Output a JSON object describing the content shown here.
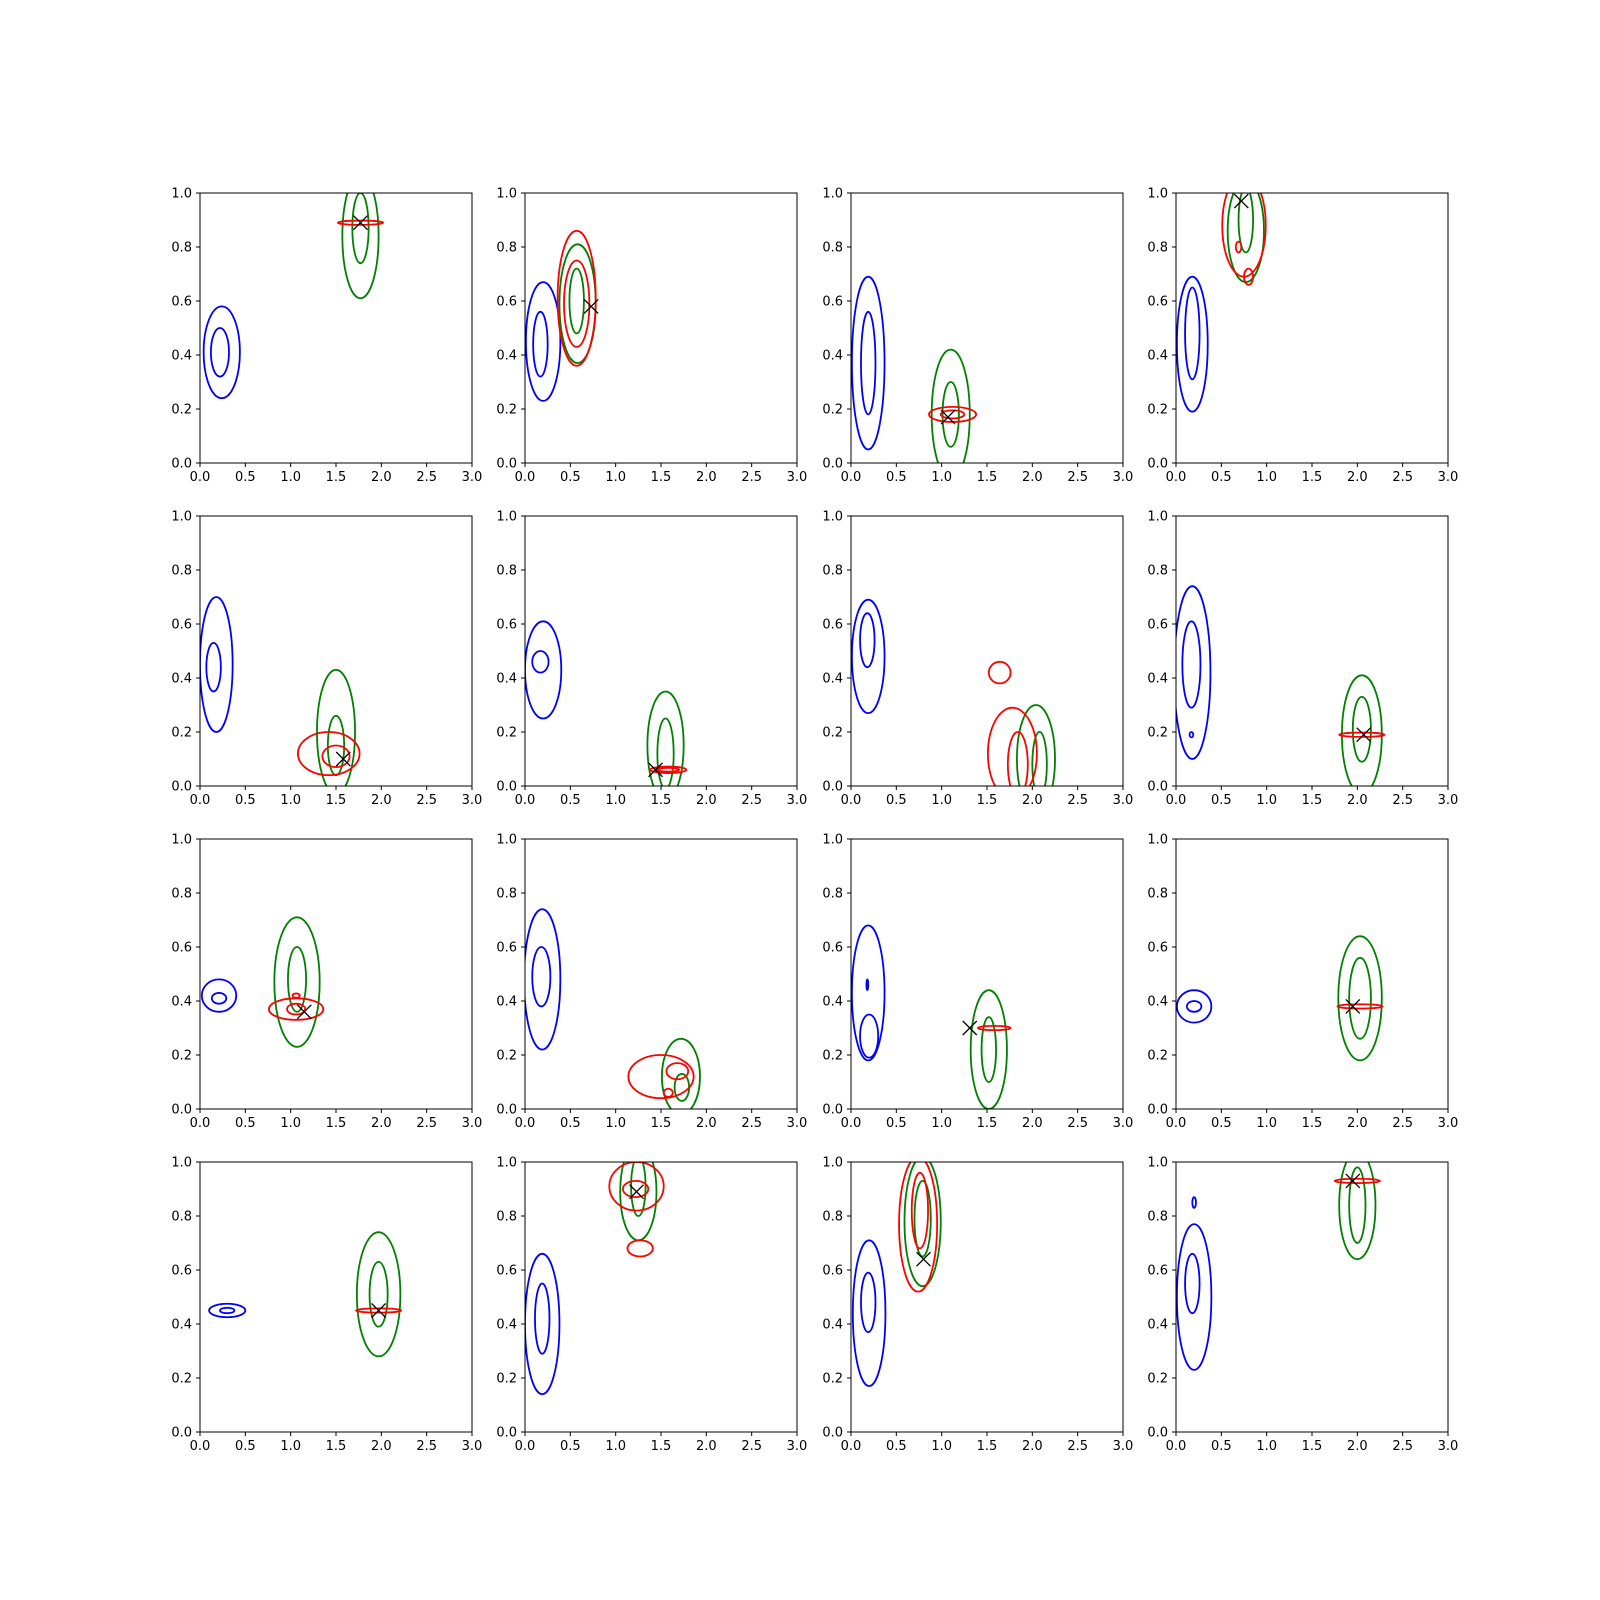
{
  "figure": {
    "grid_rows": 4,
    "grid_cols": 4,
    "x_ticks": [
      "0.0",
      "0.5",
      "1.0",
      "1.5",
      "2.0",
      "2.5",
      "3.0"
    ],
    "y_ticks": [
      "0.0",
      "0.2",
      "0.4",
      "0.6",
      "0.8",
      "1.0"
    ],
    "colors": {
      "blue": "#0000ff",
      "green": "#008000",
      "red": "#ff0000",
      "marker": "#000000"
    }
  },
  "chart_data": [
    {
      "type": "contour",
      "xlim": [
        0,
        3
      ],
      "ylim": [
        0,
        1
      ],
      "grid": false,
      "marker": {
        "x": 1.77,
        "y": 0.89
      },
      "contours": [
        {
          "color": "blue",
          "cx": 0.22,
          "cy": 0.41,
          "rx": 0.1,
          "ry": 0.09
        },
        {
          "color": "blue",
          "cx": 0.24,
          "cy": 0.41,
          "rx": 0.2,
          "ry": 0.17
        },
        {
          "color": "green",
          "cx": 1.77,
          "cy": 0.87,
          "rx": 0.09,
          "ry": 0.13
        },
        {
          "color": "green",
          "cx": 1.77,
          "cy": 0.84,
          "rx": 0.2,
          "ry": 0.23
        },
        {
          "color": "red",
          "cx": 1.77,
          "cy": 0.89,
          "rx": 0.25,
          "ry": 0.008
        }
      ]
    },
    {
      "type": "contour",
      "xlim": [
        0,
        3
      ],
      "ylim": [
        0,
        1
      ],
      "grid": false,
      "marker": {
        "x": 0.73,
        "y": 0.58
      },
      "contours": [
        {
          "color": "blue",
          "cx": 0.17,
          "cy": 0.44,
          "rx": 0.08,
          "ry": 0.12
        },
        {
          "color": "blue",
          "cx": 0.2,
          "cy": 0.45,
          "rx": 0.19,
          "ry": 0.22
        },
        {
          "color": "green",
          "cx": 0.57,
          "cy": 0.6,
          "rx": 0.08,
          "ry": 0.12
        },
        {
          "color": "green",
          "cx": 0.58,
          "cy": 0.59,
          "rx": 0.2,
          "ry": 0.22
        },
        {
          "color": "red",
          "cx": 0.57,
          "cy": 0.59,
          "rx": 0.14,
          "ry": 0.16
        },
        {
          "color": "red",
          "cx": 0.57,
          "cy": 0.61,
          "rx": 0.21,
          "ry": 0.25
        }
      ]
    },
    {
      "type": "contour",
      "xlim": [
        0,
        3
      ],
      "ylim": [
        0,
        1
      ],
      "grid": false,
      "marker": {
        "x": 1.07,
        "y": 0.17
      },
      "contours": [
        {
          "color": "blue",
          "cx": 0.19,
          "cy": 0.37,
          "rx": 0.08,
          "ry": 0.19
        },
        {
          "color": "blue",
          "cx": 0.19,
          "cy": 0.37,
          "rx": 0.18,
          "ry": 0.32
        },
        {
          "color": "green",
          "cx": 1.1,
          "cy": 0.18,
          "rx": 0.09,
          "ry": 0.12
        },
        {
          "color": "green",
          "cx": 1.1,
          "cy": 0.18,
          "rx": 0.21,
          "ry": 0.24
        },
        {
          "color": "red",
          "cx": 1.12,
          "cy": 0.18,
          "rx": 0.13,
          "ry": 0.015
        },
        {
          "color": "red",
          "cx": 1.12,
          "cy": 0.18,
          "rx": 0.26,
          "ry": 0.028
        }
      ]
    },
    {
      "type": "contour",
      "xlim": [
        0,
        3
      ],
      "ylim": [
        0,
        1
      ],
      "grid": false,
      "marker": {
        "x": 0.72,
        "y": 0.97
      },
      "contours": [
        {
          "color": "blue",
          "cx": 0.18,
          "cy": 0.48,
          "rx": 0.08,
          "ry": 0.17
        },
        {
          "color": "blue",
          "cx": 0.18,
          "cy": 0.44,
          "rx": 0.17,
          "ry": 0.25
        },
        {
          "color": "green",
          "cx": 0.77,
          "cy": 0.9,
          "rx": 0.08,
          "ry": 0.12
        },
        {
          "color": "green",
          "cx": 0.77,
          "cy": 0.86,
          "rx": 0.2,
          "ry": 0.19
        },
        {
          "color": "red",
          "cx": 0.75,
          "cy": 0.88,
          "rx": 0.24,
          "ry": 0.19
        },
        {
          "color": "red",
          "cx": 0.69,
          "cy": 0.8,
          "rx": 0.03,
          "ry": 0.02
        },
        {
          "color": "red",
          "cx": 0.8,
          "cy": 0.69,
          "rx": 0.05,
          "ry": 0.03
        }
      ]
    },
    {
      "type": "contour",
      "xlim": [
        0,
        3
      ],
      "ylim": [
        0,
        1
      ],
      "grid": false,
      "marker": {
        "x": 1.58,
        "y": 0.1
      },
      "contours": [
        {
          "color": "blue",
          "cx": 0.15,
          "cy": 0.44,
          "rx": 0.08,
          "ry": 0.09
        },
        {
          "color": "blue",
          "cx": 0.18,
          "cy": 0.45,
          "rx": 0.18,
          "ry": 0.25
        },
        {
          "color": "green",
          "cx": 1.5,
          "cy": 0.15,
          "rx": 0.09,
          "ry": 0.11
        },
        {
          "color": "green",
          "cx": 1.5,
          "cy": 0.2,
          "rx": 0.21,
          "ry": 0.23
        },
        {
          "color": "red",
          "cx": 1.5,
          "cy": 0.11,
          "rx": 0.15,
          "ry": 0.04
        },
        {
          "color": "red",
          "cx": 1.42,
          "cy": 0.12,
          "rx": 0.34,
          "ry": 0.08
        }
      ]
    },
    {
      "type": "contour",
      "xlim": [
        0,
        3
      ],
      "ylim": [
        0,
        1
      ],
      "grid": false,
      "marker": {
        "x": 1.44,
        "y": 0.06
      },
      "contours": [
        {
          "color": "blue",
          "cx": 0.17,
          "cy": 0.46,
          "rx": 0.09,
          "ry": 0.04
        },
        {
          "color": "blue",
          "cx": 0.2,
          "cy": 0.43,
          "rx": 0.2,
          "ry": 0.18
        },
        {
          "color": "green",
          "cx": 1.55,
          "cy": 0.12,
          "rx": 0.09,
          "ry": 0.13
        },
        {
          "color": "green",
          "cx": 1.55,
          "cy": 0.15,
          "rx": 0.2,
          "ry": 0.2
        },
        {
          "color": "red",
          "cx": 1.58,
          "cy": 0.06,
          "rx": 0.12,
          "ry": 0.007
        },
        {
          "color": "red",
          "cx": 1.58,
          "cy": 0.06,
          "rx": 0.2,
          "ry": 0.012
        }
      ]
    },
    {
      "type": "contour",
      "xlim": [
        0,
        3
      ],
      "ylim": [
        0,
        1
      ],
      "grid": false,
      "marker": null,
      "contours": [
        {
          "color": "blue",
          "cx": 0.18,
          "cy": 0.54,
          "rx": 0.08,
          "ry": 0.1
        },
        {
          "color": "blue",
          "cx": 0.19,
          "cy": 0.48,
          "rx": 0.18,
          "ry": 0.21
        },
        {
          "color": "green",
          "cx": 2.08,
          "cy": 0.08,
          "rx": 0.08,
          "ry": 0.12
        },
        {
          "color": "green",
          "cx": 2.04,
          "cy": 0.1,
          "rx": 0.21,
          "ry": 0.2
        },
        {
          "color": "red",
          "cx": 1.84,
          "cy": 0.08,
          "rx": 0.11,
          "ry": 0.12
        },
        {
          "color": "red",
          "cx": 1.78,
          "cy": 0.12,
          "rx": 0.27,
          "ry": 0.17
        },
        {
          "color": "red",
          "cx": 1.64,
          "cy": 0.42,
          "rx": 0.12,
          "ry": 0.04
        }
      ]
    },
    {
      "type": "contour",
      "xlim": [
        0,
        3
      ],
      "ylim": [
        0,
        1
      ],
      "grid": false,
      "marker": {
        "x": 2.07,
        "y": 0.19
      },
      "contours": [
        {
          "color": "blue",
          "cx": 0.17,
          "cy": 0.45,
          "rx": 0.1,
          "ry": 0.16
        },
        {
          "color": "blue",
          "cx": 0.18,
          "cy": 0.42,
          "rx": 0.2,
          "ry": 0.32
        },
        {
          "color": "blue",
          "cx": 0.17,
          "cy": 0.19,
          "rx": 0.02,
          "ry": 0.01
        },
        {
          "color": "green",
          "cx": 2.05,
          "cy": 0.21,
          "rx": 0.1,
          "ry": 0.12
        },
        {
          "color": "green",
          "cx": 2.05,
          "cy": 0.19,
          "rx": 0.22,
          "ry": 0.22
        },
        {
          "color": "red",
          "cx": 2.05,
          "cy": 0.19,
          "rx": 0.25,
          "ry": 0.008
        }
      ]
    },
    {
      "type": "contour",
      "xlim": [
        0,
        3
      ],
      "ylim": [
        0,
        1
      ],
      "grid": false,
      "marker": {
        "x": 1.15,
        "y": 0.36
      },
      "contours": [
        {
          "color": "blue",
          "cx": 0.21,
          "cy": 0.41,
          "rx": 0.08,
          "ry": 0.02
        },
        {
          "color": "blue",
          "cx": 0.21,
          "cy": 0.42,
          "rx": 0.19,
          "ry": 0.06
        },
        {
          "color": "green",
          "cx": 1.07,
          "cy": 0.48,
          "rx": 0.1,
          "ry": 0.12
        },
        {
          "color": "green",
          "cx": 1.07,
          "cy": 0.47,
          "rx": 0.25,
          "ry": 0.24
        },
        {
          "color": "red",
          "cx": 1.06,
          "cy": 0.37,
          "rx": 0.1,
          "ry": 0.02
        },
        {
          "color": "red",
          "cx": 1.06,
          "cy": 0.37,
          "rx": 0.3,
          "ry": 0.04
        },
        {
          "color": "red",
          "cx": 1.06,
          "cy": 0.42,
          "rx": 0.04,
          "ry": 0.008
        }
      ]
    },
    {
      "type": "contour",
      "xlim": [
        0,
        3
      ],
      "ylim": [
        0,
        1
      ],
      "grid": false,
      "marker": null,
      "contours": [
        {
          "color": "blue",
          "cx": 0.18,
          "cy": 0.49,
          "rx": 0.1,
          "ry": 0.11
        },
        {
          "color": "blue",
          "cx": 0.19,
          "cy": 0.48,
          "rx": 0.2,
          "ry": 0.26
        },
        {
          "color": "green",
          "cx": 1.73,
          "cy": 0.08,
          "rx": 0.08,
          "ry": 0.05
        },
        {
          "color": "green",
          "cx": 1.72,
          "cy": 0.12,
          "rx": 0.21,
          "ry": 0.14
        },
        {
          "color": "red",
          "cx": 1.68,
          "cy": 0.14,
          "rx": 0.12,
          "ry": 0.03
        },
        {
          "color": "red",
          "cx": 1.5,
          "cy": 0.12,
          "rx": 0.36,
          "ry": 0.08
        },
        {
          "color": "red",
          "cx": 1.58,
          "cy": 0.06,
          "rx": 0.05,
          "ry": 0.015
        }
      ]
    },
    {
      "type": "contour",
      "xlim": [
        0,
        3
      ],
      "ylim": [
        0,
        1
      ],
      "grid": false,
      "marker": {
        "x": 1.31,
        "y": 0.3
      },
      "contours": [
        {
          "color": "blue",
          "cx": 0.2,
          "cy": 0.27,
          "rx": 0.1,
          "ry": 0.08
        },
        {
          "color": "blue",
          "cx": 0.19,
          "cy": 0.43,
          "rx": 0.18,
          "ry": 0.25
        },
        {
          "color": "blue",
          "cx": 0.18,
          "cy": 0.46,
          "rx": 0.01,
          "ry": 0.02
        },
        {
          "color": "green",
          "cx": 1.52,
          "cy": 0.22,
          "rx": 0.08,
          "ry": 0.12
        },
        {
          "color": "green",
          "cx": 1.52,
          "cy": 0.22,
          "rx": 0.2,
          "ry": 0.22
        },
        {
          "color": "red",
          "cx": 1.58,
          "cy": 0.3,
          "rx": 0.18,
          "ry": 0.008
        }
      ]
    },
    {
      "type": "contour",
      "xlim": [
        0,
        3
      ],
      "ylim": [
        0,
        1
      ],
      "grid": false,
      "marker": {
        "x": 1.95,
        "y": 0.38
      },
      "contours": [
        {
          "color": "blue",
          "cx": 0.2,
          "cy": 0.38,
          "rx": 0.08,
          "ry": 0.02
        },
        {
          "color": "blue",
          "cx": 0.2,
          "cy": 0.38,
          "rx": 0.19,
          "ry": 0.06
        },
        {
          "color": "green",
          "cx": 2.03,
          "cy": 0.41,
          "rx": 0.12,
          "ry": 0.15
        },
        {
          "color": "green",
          "cx": 2.03,
          "cy": 0.41,
          "rx": 0.24,
          "ry": 0.23
        },
        {
          "color": "red",
          "cx": 2.03,
          "cy": 0.38,
          "rx": 0.25,
          "ry": 0.008
        }
      ]
    },
    {
      "type": "contour",
      "xlim": [
        0,
        3
      ],
      "ylim": [
        0,
        1
      ],
      "grid": false,
      "marker": {
        "x": 1.97,
        "y": 0.45
      },
      "contours": [
        {
          "color": "blue",
          "cx": 0.3,
          "cy": 0.45,
          "rx": 0.08,
          "ry": 0.01
        },
        {
          "color": "blue",
          "cx": 0.3,
          "cy": 0.45,
          "rx": 0.2,
          "ry": 0.025
        },
        {
          "color": "green",
          "cx": 1.97,
          "cy": 0.51,
          "rx": 0.1,
          "ry": 0.12
        },
        {
          "color": "green",
          "cx": 1.97,
          "cy": 0.51,
          "rx": 0.24,
          "ry": 0.23
        },
        {
          "color": "red",
          "cx": 1.97,
          "cy": 0.45,
          "rx": 0.25,
          "ry": 0.008
        }
      ]
    },
    {
      "type": "contour",
      "xlim": [
        0,
        3
      ],
      "ylim": [
        0,
        1
      ],
      "grid": false,
      "marker": {
        "x": 1.23,
        "y": 0.89
      },
      "contours": [
        {
          "color": "blue",
          "cx": 0.19,
          "cy": 0.42,
          "rx": 0.08,
          "ry": 0.13
        },
        {
          "color": "blue",
          "cx": 0.19,
          "cy": 0.4,
          "rx": 0.19,
          "ry": 0.26
        },
        {
          "color": "green",
          "cx": 1.25,
          "cy": 0.91,
          "rx": 0.08,
          "ry": 0.11
        },
        {
          "color": "green",
          "cx": 1.25,
          "cy": 0.89,
          "rx": 0.2,
          "ry": 0.18
        },
        {
          "color": "red",
          "cx": 1.22,
          "cy": 0.9,
          "rx": 0.14,
          "ry": 0.03
        },
        {
          "color": "red",
          "cx": 1.23,
          "cy": 0.91,
          "rx": 0.3,
          "ry": 0.09
        },
        {
          "color": "red",
          "cx": 1.27,
          "cy": 0.68,
          "rx": 0.14,
          "ry": 0.03
        }
      ]
    },
    {
      "type": "contour",
      "xlim": [
        0,
        3
      ],
      "ylim": [
        0,
        1
      ],
      "grid": false,
      "marker": {
        "x": 0.8,
        "y": 0.64
      },
      "contours": [
        {
          "color": "blue",
          "cx": 0.19,
          "cy": 0.48,
          "rx": 0.08,
          "ry": 0.11
        },
        {
          "color": "blue",
          "cx": 0.2,
          "cy": 0.44,
          "rx": 0.18,
          "ry": 0.27
        },
        {
          "color": "green",
          "cx": 0.79,
          "cy": 0.79,
          "rx": 0.09,
          "ry": 0.14
        },
        {
          "color": "green",
          "cx": 0.79,
          "cy": 0.78,
          "rx": 0.2,
          "ry": 0.24
        },
        {
          "color": "red",
          "cx": 0.76,
          "cy": 0.82,
          "rx": 0.09,
          "ry": 0.14
        },
        {
          "color": "red",
          "cx": 0.74,
          "cy": 0.77,
          "rx": 0.21,
          "ry": 0.25
        }
      ]
    },
    {
      "type": "contour",
      "xlim": [
        0,
        3
      ],
      "ylim": [
        0,
        1
      ],
      "grid": false,
      "marker": {
        "x": 1.95,
        "y": 0.93
      },
      "contours": [
        {
          "color": "blue",
          "cx": 0.18,
          "cy": 0.55,
          "rx": 0.08,
          "ry": 0.11
        },
        {
          "color": "blue",
          "cx": 0.2,
          "cy": 0.5,
          "rx": 0.19,
          "ry": 0.27
        },
        {
          "color": "blue",
          "cx": 0.2,
          "cy": 0.85,
          "rx": 0.02,
          "ry": 0.02
        },
        {
          "color": "green",
          "cx": 2.0,
          "cy": 0.84,
          "rx": 0.09,
          "ry": 0.14
        },
        {
          "color": "green",
          "cx": 2.0,
          "cy": 0.84,
          "rx": 0.2,
          "ry": 0.2
        },
        {
          "color": "red",
          "cx": 2.0,
          "cy": 0.93,
          "rx": 0.25,
          "ry": 0.008
        }
      ]
    }
  ]
}
